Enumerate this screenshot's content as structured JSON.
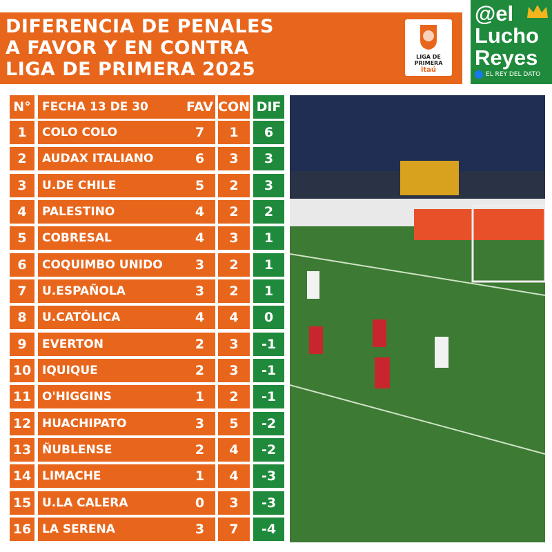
{
  "header": {
    "title_lines": [
      "DIFERENCIA DE PENALES",
      "A FAVOR Y EN CONTRA",
      "LIGA DE PRIMERA 2025"
    ],
    "logo": {
      "line1": "LIGA DE",
      "line2": "PRIMERA",
      "sponsor": "itaú"
    }
  },
  "brand": {
    "lines": [
      "@el",
      "Lucho",
      "Reyes"
    ],
    "tagline": "EL REY DEL DATO"
  },
  "table": {
    "columns": [
      "N°",
      "FECHA 13 DE 30",
      "FAV",
      "CON",
      "DIF"
    ],
    "rows": [
      [
        1,
        "COLO COLO",
        7,
        1,
        6
      ],
      [
        2,
        "AUDAX ITALIANO",
        6,
        3,
        3
      ],
      [
        3,
        "U.DE CHILE",
        5,
        2,
        3
      ],
      [
        4,
        "PALESTINO",
        4,
        2,
        2
      ],
      [
        5,
        "COBRESAL",
        4,
        3,
        1
      ],
      [
        6,
        "COQUIMBO UNIDO",
        3,
        2,
        1
      ],
      [
        7,
        "U.ESPAÑOLA",
        3,
        2,
        1
      ],
      [
        8,
        "U.CATÓLICA",
        4,
        4,
        0
      ],
      [
        9,
        "EVERTON",
        2,
        3,
        -1
      ],
      [
        10,
        "IQUIQUE",
        2,
        3,
        -1
      ],
      [
        11,
        "O'HIGGINS",
        1,
        2,
        -1
      ],
      [
        12,
        "HUACHIPATO",
        3,
        5,
        -2
      ],
      [
        13,
        "ÑUBLENSE",
        2,
        4,
        -2
      ],
      [
        14,
        "LIMACHE",
        1,
        4,
        -3
      ],
      [
        15,
        "U.LA CALERA",
        0,
        3,
        -3
      ],
      [
        16,
        "LA SERENA",
        3,
        7,
        -4
      ]
    ]
  }
}
